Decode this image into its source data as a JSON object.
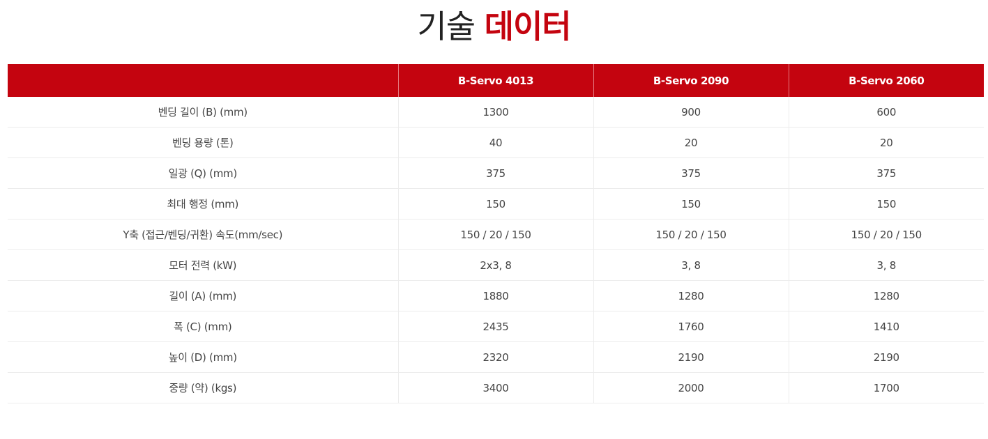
{
  "title": {
    "part1": "기술",
    "part2": "데이터"
  },
  "table": {
    "headers": [
      "",
      "B-Servo 4013",
      "B-Servo 2090",
      "B-Servo 2060"
    ],
    "rows": [
      {
        "label": "벤딩 길이 (B) (mm)",
        "values": [
          "1300",
          "900",
          "600"
        ]
      },
      {
        "label": "벤딩 용량 (톤)",
        "values": [
          "40",
          "20",
          "20"
        ]
      },
      {
        "label": "일광 (Q) (mm)",
        "values": [
          "375",
          "375",
          "375"
        ]
      },
      {
        "label": "최대 행정 (mm)",
        "values": [
          "150",
          "150",
          "150"
        ]
      },
      {
        "label": "Y축 (접근/벤딩/귀환) 속도(mm/sec)",
        "values": [
          "150 / 20 / 150",
          "150 / 20 / 150",
          "150 / 20 / 150"
        ]
      },
      {
        "label": "모터 전력 (kW)",
        "values": [
          "2x3, 8",
          "3, 8",
          "3, 8"
        ]
      },
      {
        "label": "길이 (A) (mm)",
        "values": [
          "1880",
          "1280",
          "1280"
        ]
      },
      {
        "label": "폭 (C) (mm)",
        "values": [
          "2435",
          "1760",
          "1410"
        ]
      },
      {
        "label": "높이 (D) (mm)",
        "values": [
          "2320",
          "2190",
          "2190"
        ]
      },
      {
        "label": "중량 (약) (kgs)",
        "values": [
          "3400",
          "2000",
          "1700"
        ]
      }
    ]
  },
  "colors": {
    "accent": "#c4040f",
    "header_text": "#ffffff",
    "body_text": "#444444"
  }
}
